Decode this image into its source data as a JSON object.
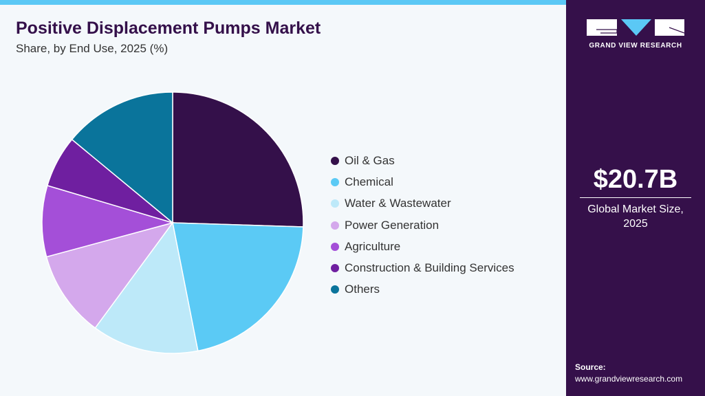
{
  "chart_data": {
    "type": "pie",
    "title": "Positive Displacement Pumps Market",
    "subtitle": "Share, by End Use, 2025 (%)",
    "categories": [
      "Oil & Gas",
      "Chemical",
      "Water & Wastewater",
      "Power Generation",
      "Agriculture",
      "Construction & Building Services",
      "Others"
    ],
    "values": [
      25.5,
      21.4,
      13.2,
      10.7,
      8.8,
      6.4,
      14.0
    ],
    "colors": [
      "#34104a",
      "#5bcaf5",
      "#bde9f9",
      "#d4a8ec",
      "#a44fd8",
      "#6f1fa0",
      "#0a749b"
    ],
    "legend_position": "right"
  },
  "sidebar": {
    "logo_text": "GRAND VIEW RESEARCH",
    "market_size": "$20.7B",
    "market_label_1": "Global Market Size,",
    "market_label_2": "2025",
    "source_label": "Source:",
    "source_url": "www.grandviewresearch.com"
  }
}
